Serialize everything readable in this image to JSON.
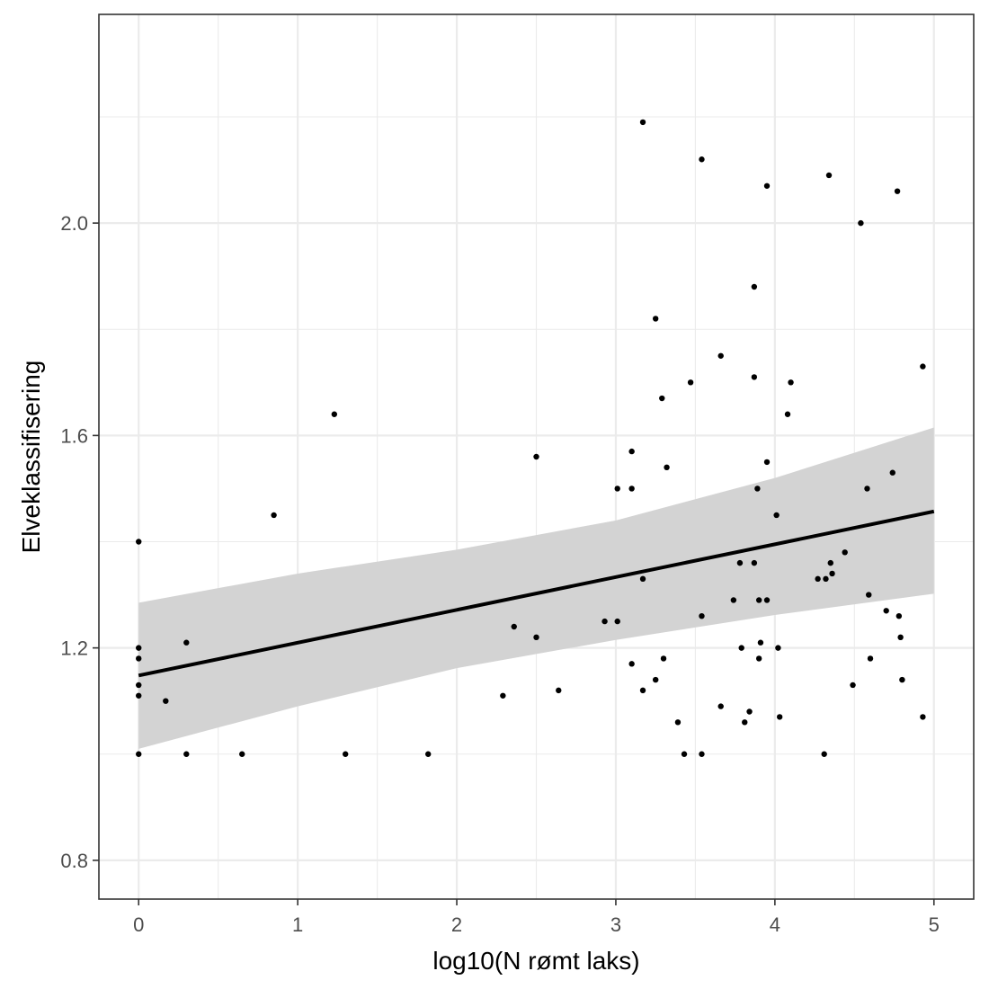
{
  "chart_data": {
    "type": "scatter",
    "title": "",
    "xlabel": "log10(N rømt laks)",
    "ylabel": "Elveklassifisering",
    "xlim": [
      -0.25,
      5.25
    ],
    "ylim": [
      0.727,
      2.393
    ],
    "x_ticks": [
      0,
      1,
      2,
      3,
      4,
      5
    ],
    "x_tick_labels": [
      "0",
      "1",
      "2",
      "3",
      "4",
      "5"
    ],
    "y_ticks": [
      0.8,
      1.2,
      1.6,
      2.0
    ],
    "y_tick_labels": [
      "0.8",
      "1.2",
      "1.6",
      "2.0"
    ],
    "grid": true,
    "legend": "none",
    "colors": {
      "points": "#000000",
      "fit_line": "#000000",
      "ribbon": "#d3d3d3",
      "grid": "#ebebeb",
      "panel_border": "#333333",
      "tick_text": "#4d4d4d"
    },
    "points": [
      [
        0,
        1.4
      ],
      [
        0,
        1.2
      ],
      [
        0,
        1.18
      ],
      [
        0,
        1.13
      ],
      [
        0,
        1.11
      ],
      [
        0,
        1.0
      ],
      [
        0.17,
        1.1
      ],
      [
        0.3,
        1.21
      ],
      [
        0.3,
        1.0
      ],
      [
        0.65,
        1.0
      ],
      [
        0.85,
        1.45
      ],
      [
        1.23,
        1.64
      ],
      [
        1.3,
        1.0
      ],
      [
        1.82,
        1.0
      ],
      [
        2.29,
        1.11
      ],
      [
        2.36,
        1.24
      ],
      [
        2.5,
        1.56
      ],
      [
        2.5,
        1.22
      ],
      [
        2.64,
        1.12
      ],
      [
        2.93,
        1.25
      ],
      [
        3.01,
        1.5
      ],
      [
        3.01,
        1.25
      ],
      [
        3.1,
        1.57
      ],
      [
        3.1,
        1.5
      ],
      [
        3.1,
        1.17
      ],
      [
        3.17,
        2.19
      ],
      [
        3.17,
        1.33
      ],
      [
        3.17,
        1.12
      ],
      [
        3.25,
        1.82
      ],
      [
        3.25,
        1.14
      ],
      [
        3.29,
        1.67
      ],
      [
        3.3,
        1.18
      ],
      [
        3.32,
        1.54
      ],
      [
        3.39,
        1.06
      ],
      [
        3.43,
        1.0
      ],
      [
        3.47,
        1.7
      ],
      [
        3.54,
        2.12
      ],
      [
        3.54,
        1.26
      ],
      [
        3.54,
        1.0
      ],
      [
        3.66,
        1.75
      ],
      [
        3.66,
        1.09
      ],
      [
        3.74,
        1.29
      ],
      [
        3.78,
        1.36
      ],
      [
        3.79,
        1.2
      ],
      [
        3.81,
        1.06
      ],
      [
        3.84,
        1.08
      ],
      [
        3.87,
        1.88
      ],
      [
        3.87,
        1.71
      ],
      [
        3.87,
        1.36
      ],
      [
        3.89,
        1.5
      ],
      [
        3.9,
        1.29
      ],
      [
        3.9,
        1.18
      ],
      [
        3.91,
        1.21
      ],
      [
        3.95,
        2.07
      ],
      [
        3.95,
        1.55
      ],
      [
        3.95,
        1.29
      ],
      [
        4.01,
        1.45
      ],
      [
        4.02,
        1.2
      ],
      [
        4.03,
        1.07
      ],
      [
        4.08,
        1.64
      ],
      [
        4.1,
        1.7
      ],
      [
        4.27,
        1.33
      ],
      [
        4.31,
        1.0
      ],
      [
        4.32,
        1.33
      ],
      [
        4.34,
        2.09
      ],
      [
        4.35,
        1.36
      ],
      [
        4.36,
        1.34
      ],
      [
        4.44,
        1.38
      ],
      [
        4.49,
        1.13
      ],
      [
        4.54,
        2.0
      ],
      [
        4.58,
        1.5
      ],
      [
        4.59,
        1.3
      ],
      [
        4.6,
        1.18
      ],
      [
        4.7,
        1.27
      ],
      [
        4.74,
        1.53
      ],
      [
        4.77,
        2.06
      ],
      [
        4.78,
        1.26
      ],
      [
        4.79,
        1.22
      ],
      [
        4.8,
        1.14
      ],
      [
        4.93,
        1.73
      ],
      [
        4.93,
        1.07
      ]
    ],
    "fit_line": {
      "x": [
        0,
        5
      ],
      "y": [
        1.148,
        1.457
      ]
    },
    "ribbon": {
      "x": [
        0,
        1,
        2,
        3,
        4,
        5
      ],
      "lower": [
        1.01,
        1.09,
        1.162,
        1.215,
        1.262,
        1.302
      ],
      "upper": [
        1.285,
        1.34,
        1.385,
        1.44,
        1.52,
        1.615
      ]
    }
  }
}
